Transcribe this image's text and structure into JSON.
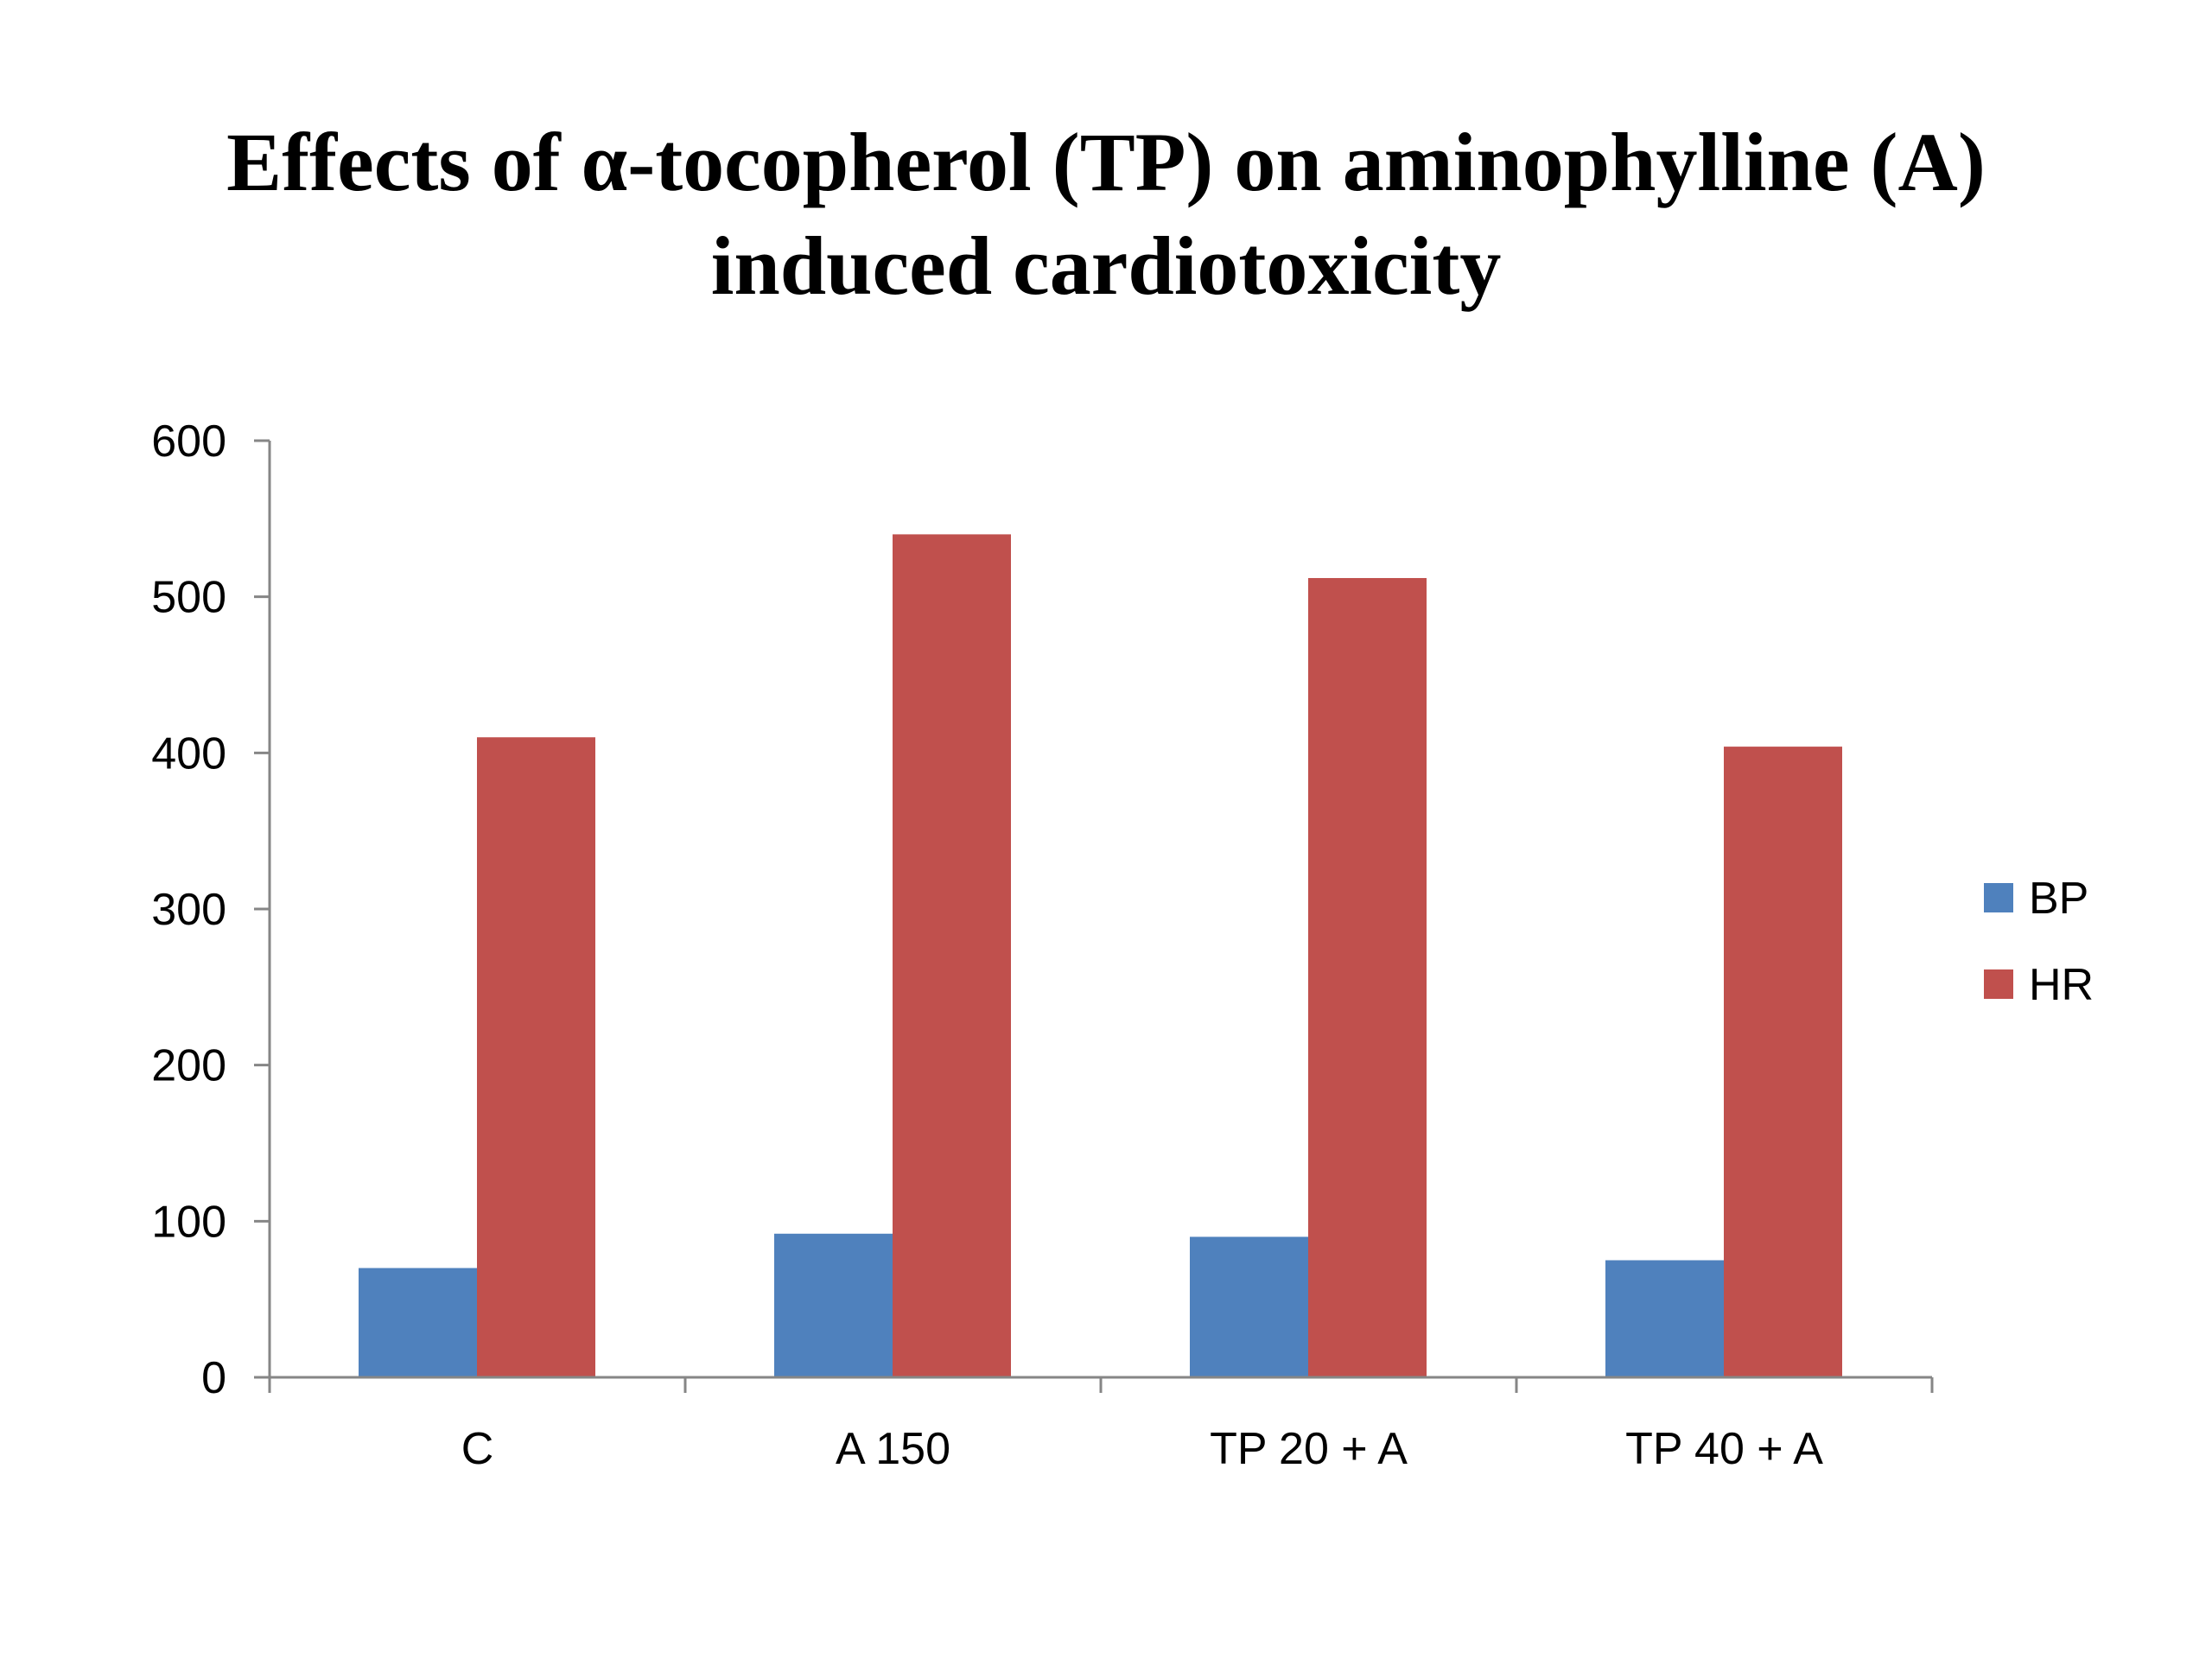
{
  "chart_data": {
    "type": "bar",
    "title_lines": [
      "Effects of α-tocopherol (TP) on aminophylline (A)",
      "induced cardiotoxicity"
    ],
    "xlabel": "",
    "ylabel": "",
    "categories": [
      "C",
      "A 150",
      "TP 20 + A",
      "TP 40 + A"
    ],
    "series": [
      {
        "name": "BP",
        "color": "#4F81BD",
        "values": [
          70,
          92,
          90,
          75
        ]
      },
      {
        "name": "HR",
        "color": "#C0504D",
        "values": [
          410,
          540,
          512,
          404
        ]
      }
    ],
    "ylim": [
      0,
      600
    ],
    "yticks": [
      0,
      100,
      200,
      300,
      400,
      500,
      600
    ],
    "grid": false,
    "legend": "right"
  }
}
